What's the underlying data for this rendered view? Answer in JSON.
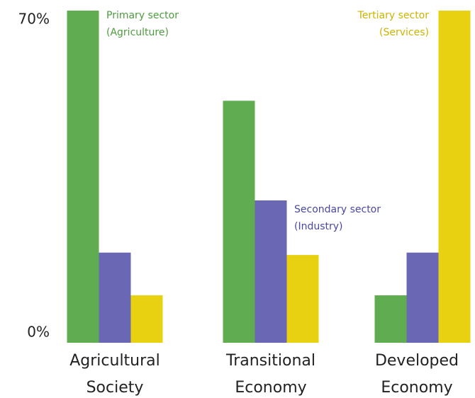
{
  "chart_data": {
    "type": "bar",
    "categories": [
      "Agricultural Society",
      "Transitional Economy",
      "Developed Economy"
    ],
    "series": [
      {
        "name": "Primary sector (Agriculture)",
        "color": "#60ad51",
        "values": [
          70,
          51,
          10
        ]
      },
      {
        "name": "Secondary sector (Industry)",
        "color": "#6a67b4",
        "values": [
          19,
          30,
          19
        ]
      },
      {
        "name": "Tertiary sector (Services)",
        "color": "#e8d110",
        "values": [
          10,
          18.5,
          70
        ]
      }
    ],
    "ylim": [
      0,
      70
    ],
    "yticks": [
      {
        "value": 0,
        "label": "0%"
      },
      {
        "value": 70,
        "label": "70%"
      }
    ],
    "grid": false
  }
}
